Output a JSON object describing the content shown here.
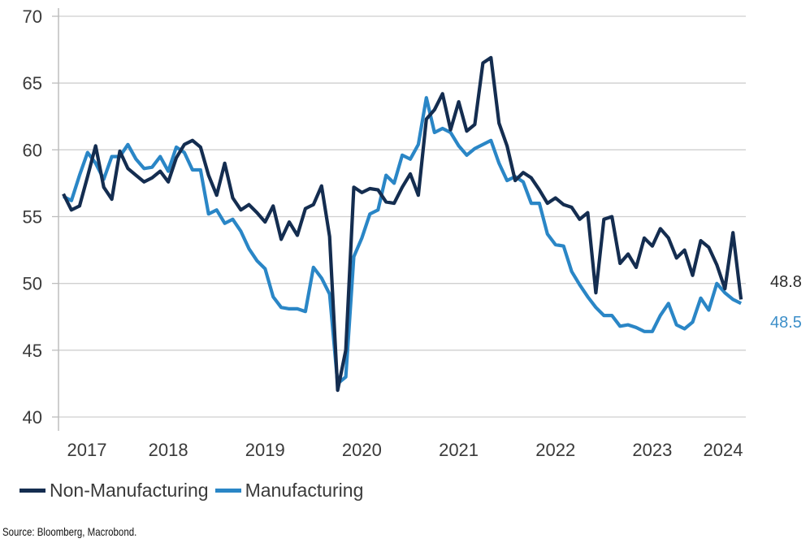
{
  "chart_data": {
    "type": "line",
    "ylim": [
      40,
      70
    ],
    "yticks": [
      40,
      45,
      50,
      55,
      60,
      65,
      70
    ],
    "xticks": [
      "2017",
      "2018",
      "2019",
      "2020",
      "2021",
      "2022",
      "2023",
      "2024"
    ],
    "grid": "horizontal",
    "legend_placement": "bottom-left",
    "x": [
      "2017-06",
      "2017-07",
      "2017-08",
      "2017-09",
      "2017-10",
      "2017-11",
      "2017-12",
      "2018-01",
      "2018-02",
      "2018-03",
      "2018-04",
      "2018-05",
      "2018-06",
      "2018-07",
      "2018-08",
      "2018-09",
      "2018-10",
      "2018-11",
      "2018-12",
      "2019-01",
      "2019-02",
      "2019-03",
      "2019-04",
      "2019-05",
      "2019-06",
      "2019-07",
      "2019-08",
      "2019-09",
      "2019-10",
      "2019-11",
      "2019-12",
      "2020-01",
      "2020-02",
      "2020-03",
      "2020-04",
      "2020-05",
      "2020-06",
      "2020-07",
      "2020-08",
      "2020-09",
      "2020-10",
      "2020-11",
      "2020-12",
      "2021-01",
      "2021-02",
      "2021-03",
      "2021-04",
      "2021-05",
      "2021-06",
      "2021-07",
      "2021-08",
      "2021-09",
      "2021-10",
      "2021-11",
      "2021-12",
      "2022-01",
      "2022-02",
      "2022-03",
      "2022-04",
      "2022-05",
      "2022-06",
      "2022-07",
      "2022-08",
      "2022-09",
      "2022-10",
      "2022-11",
      "2022-12",
      "2023-01",
      "2023-02",
      "2023-03",
      "2023-04",
      "2023-05",
      "2023-06",
      "2023-07",
      "2023-08",
      "2023-09",
      "2023-10",
      "2023-11",
      "2023-12",
      "2024-01",
      "2024-02",
      "2024-03",
      "2024-04",
      "2024-05",
      "2024-06"
    ],
    "series": [
      {
        "name": "Non-Manufacturing",
        "color": "#142d50",
        "last_label": "48.8",
        "values": [
          56.7,
          55.5,
          55.8,
          58.0,
          60.3,
          57.2,
          56.3,
          59.9,
          58.6,
          58.1,
          57.6,
          57.9,
          58.4,
          57.6,
          59.4,
          60.4,
          60.7,
          60.2,
          58.1,
          56.6,
          59.0,
          56.4,
          55.5,
          55.9,
          55.3,
          54.6,
          55.8,
          53.3,
          54.6,
          53.6,
          55.6,
          55.9,
          57.3,
          53.5,
          42.0,
          45.0,
          57.2,
          56.8,
          57.1,
          57.0,
          56.1,
          56.0,
          57.2,
          58.2,
          56.6,
          62.3,
          63.0,
          64.2,
          61.5,
          63.6,
          61.4,
          61.9,
          66.5,
          66.9,
          62.0,
          60.3,
          57.7,
          58.3,
          57.9,
          57.0,
          56.0,
          56.4,
          55.9,
          55.7,
          54.8,
          55.3,
          49.3,
          54.8,
          55.0,
          51.5,
          52.2,
          51.2,
          53.4,
          52.8,
          54.1,
          53.4,
          51.9,
          52.5,
          50.6,
          53.2,
          52.7,
          51.4,
          49.6,
          53.8,
          48.8
        ]
      },
      {
        "name": "Manufacturing",
        "color": "#2a86c6",
        "last_label": "48.5",
        "values": [
          56.5,
          56.2,
          58.1,
          59.8,
          59.0,
          57.8,
          59.5,
          59.5,
          60.4,
          59.3,
          58.6,
          58.7,
          59.5,
          58.4,
          60.2,
          59.8,
          58.5,
          58.5,
          55.2,
          55.5,
          54.5,
          54.8,
          53.9,
          52.6,
          51.7,
          51.1,
          49.0,
          48.2,
          48.1,
          48.1,
          47.9,
          51.2,
          50.4,
          49.2,
          42.5,
          43.0,
          52.0,
          53.4,
          55.2,
          55.5,
          58.1,
          57.5,
          59.6,
          59.3,
          60.4,
          63.9,
          61.3,
          61.6,
          61.3,
          60.3,
          59.6,
          60.1,
          60.4,
          60.7,
          59.0,
          57.7,
          58.0,
          57.6,
          56.0,
          56.0,
          53.7,
          52.9,
          52.8,
          50.9,
          49.9,
          49.0,
          48.2,
          47.6,
          47.6,
          46.8,
          46.9,
          46.7,
          46.4,
          46.4,
          47.6,
          48.5,
          46.9,
          46.6,
          47.1,
          48.9,
          48.0,
          50.0,
          49.3,
          48.8,
          48.5
        ]
      }
    ]
  },
  "legend": {
    "items": [
      "Non-Manufacturing",
      "Manufacturing"
    ]
  },
  "source": "Source: Bloomberg, Macrobond."
}
